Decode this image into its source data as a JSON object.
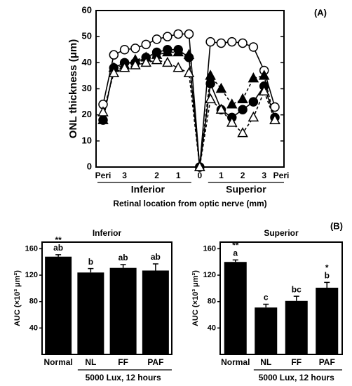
{
  "chart_data": [
    {
      "type": "line",
      "panel_label": "(A)",
      "y_label": "ONL thickness (μm)",
      "x_label": "Retinal location from optic nerve (mm)",
      "groups": [
        "Inferior",
        "Superior"
      ],
      "categories": [
        "Peri",
        null,
        "3",
        null,
        null,
        "2",
        null,
        "1",
        null,
        "0",
        null,
        "1",
        null,
        "2",
        null,
        "3",
        "Peri"
      ],
      "ylim": [
        0,
        60
      ],
      "yticks": [
        0,
        10,
        20,
        30,
        40,
        50,
        60
      ],
      "series": [
        {
          "marker": "circle-open",
          "color": "#000000",
          "dash": "solid",
          "values": [
            24,
            43,
            45,
            45.5,
            47,
            49,
            50,
            51,
            51,
            0,
            48,
            47.5,
            48,
            47.5,
            46,
            37,
            23
          ]
        },
        {
          "marker": "circle-filled",
          "color": "#000000",
          "dash": "solid",
          "values": [
            18,
            38,
            40,
            40,
            42,
            44,
            45,
            45,
            42,
            0,
            32,
            22,
            19,
            22,
            25,
            31,
            19
          ]
        },
        {
          "marker": "triangle-filled",
          "color": "#000000",
          "dash": "dashed",
          "values": [
            18,
            38,
            39,
            41,
            42,
            43,
            44,
            44,
            43,
            0,
            35,
            30,
            24,
            26,
            34,
            35,
            18
          ]
        },
        {
          "marker": "triangle-open",
          "color": "#000000",
          "dash": "dashed",
          "values": [
            21,
            36,
            38,
            39,
            40,
            41,
            40,
            38,
            36,
            0,
            26,
            22,
            17,
            13,
            19,
            29,
            18
          ]
        }
      ]
    },
    {
      "type": "bar",
      "title": "Inferior",
      "y_label": "AUC (×10³ μm²)",
      "group_label": "5000 Lux, 12 hours",
      "categories": [
        "Normal",
        "NL",
        "FF",
        "PAF"
      ],
      "values": [
        148,
        124,
        131,
        127
      ],
      "errors": [
        3,
        6,
        5,
        10
      ],
      "letters": [
        "ab",
        "b",
        "ab",
        "ab"
      ],
      "stars": [
        {
          "index": 0,
          "text": "**"
        }
      ],
      "color": "#000000",
      "ylim": [
        0,
        170
      ],
      "yticks": [
        40,
        80,
        120,
        160
      ]
    },
    {
      "type": "bar",
      "panel_label": "(B)",
      "title": "Superior",
      "y_label": "AUC (×10³ μm²)",
      "group_label": "5000 Lux, 12 hours",
      "categories": [
        "Normal",
        "NL",
        "FF",
        "PAF"
      ],
      "values": [
        140,
        71,
        81,
        101
      ],
      "errors": [
        3,
        5,
        7,
        8
      ],
      "letters": [
        "a",
        "c",
        "bc",
        "b"
      ],
      "stars": [
        {
          "index": 0,
          "text": "**"
        },
        {
          "index": 3,
          "text": "*"
        }
      ],
      "color": "#000000",
      "ylim": [
        0,
        170
      ],
      "yticks": [
        40,
        80,
        120,
        160
      ]
    }
  ]
}
